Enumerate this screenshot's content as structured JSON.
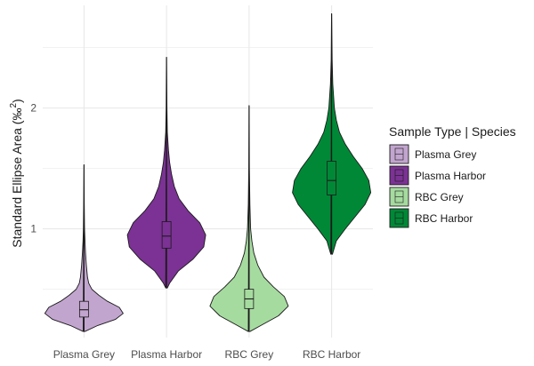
{
  "chart_data": {
    "type": "violin",
    "xlabel": "",
    "ylabel": "Standard Ellipse Area (‰",
    "ylabel_superscript": "2",
    "ylabel_close": ")",
    "ylim": [
      0.1,
      2.85
    ],
    "y_ticks": [
      1,
      2
    ],
    "y_tick_labels": [
      "1",
      "2"
    ],
    "grid": true,
    "legend_position": "right",
    "legend_title": "Sample Type | Species",
    "categories": [
      "Plasma Grey",
      "Plasma Harbor",
      "RBC Grey",
      "RBC Harbor"
    ],
    "series": [
      {
        "name": "Plasma Grey",
        "color": "#c2a5cf",
        "min": 0.15,
        "max": 1.53,
        "box": {
          "q1": 0.27,
          "median": 0.33,
          "q3": 0.4,
          "whisker_low": 0.16,
          "whisker_high": 0.6
        },
        "density": [
          [
            0.15,
            0.02
          ],
          [
            0.2,
            0.35
          ],
          [
            0.25,
            0.8
          ],
          [
            0.3,
            1.0
          ],
          [
            0.35,
            0.9
          ],
          [
            0.4,
            0.6
          ],
          [
            0.45,
            0.38
          ],
          [
            0.5,
            0.2
          ],
          [
            0.55,
            0.12
          ],
          [
            0.6,
            0.09
          ],
          [
            0.7,
            0.06
          ],
          [
            0.8,
            0.04
          ],
          [
            0.9,
            0.025
          ],
          [
            1.0,
            0.015
          ],
          [
            1.2,
            0.008
          ],
          [
            1.53,
            0.002
          ]
        ]
      },
      {
        "name": "Plasma Harbor",
        "color": "#7b3294",
        "min": 0.51,
        "max": 2.42,
        "box": {
          "q1": 0.84,
          "median": 0.94,
          "q3": 1.06,
          "whisker_low": 0.62,
          "whisker_high": 1.36
        },
        "density": [
          [
            0.51,
            0.02
          ],
          [
            0.55,
            0.08
          ],
          [
            0.65,
            0.3
          ],
          [
            0.75,
            0.68
          ],
          [
            0.85,
            0.95
          ],
          [
            0.95,
            1.0
          ],
          [
            1.05,
            0.85
          ],
          [
            1.15,
            0.55
          ],
          [
            1.25,
            0.32
          ],
          [
            1.35,
            0.2
          ],
          [
            1.45,
            0.13
          ],
          [
            1.55,
            0.08
          ],
          [
            1.65,
            0.05
          ],
          [
            1.8,
            0.02
          ],
          [
            2.0,
            0.01
          ],
          [
            2.42,
            0.002
          ]
        ]
      },
      {
        "name": "RBC Grey",
        "color": "#a6dba0",
        "min": 0.15,
        "max": 2.02,
        "box": {
          "q1": 0.34,
          "median": 0.42,
          "q3": 0.5,
          "whisker_low": 0.18,
          "whisker_high": 0.74
        },
        "density": [
          [
            0.15,
            0.02
          ],
          [
            0.2,
            0.3
          ],
          [
            0.28,
            0.75
          ],
          [
            0.36,
            1.0
          ],
          [
            0.44,
            0.9
          ],
          [
            0.52,
            0.62
          ],
          [
            0.6,
            0.38
          ],
          [
            0.7,
            0.22
          ],
          [
            0.8,
            0.12
          ],
          [
            0.9,
            0.07
          ],
          [
            1.0,
            0.04
          ],
          [
            1.2,
            0.02
          ],
          [
            1.5,
            0.008
          ],
          [
            2.02,
            0.002
          ]
        ]
      },
      {
        "name": "RBC Harbor",
        "color": "#008837",
        "min": 0.79,
        "max": 2.78,
        "box": {
          "q1": 1.28,
          "median": 1.4,
          "q3": 1.56,
          "whisker_low": 0.93,
          "whisker_high": 1.96
        },
        "density": [
          [
            0.79,
            0.02
          ],
          [
            0.9,
            0.12
          ],
          [
            1.0,
            0.35
          ],
          [
            1.1,
            0.6
          ],
          [
            1.2,
            0.85
          ],
          [
            1.3,
            1.0
          ],
          [
            1.4,
            0.95
          ],
          [
            1.5,
            0.78
          ],
          [
            1.6,
            0.55
          ],
          [
            1.7,
            0.35
          ],
          [
            1.8,
            0.2
          ],
          [
            1.9,
            0.12
          ],
          [
            2.0,
            0.07
          ],
          [
            2.1,
            0.05
          ],
          [
            2.2,
            0.03
          ],
          [
            2.4,
            0.012
          ],
          [
            2.78,
            0.002
          ]
        ]
      }
    ]
  }
}
